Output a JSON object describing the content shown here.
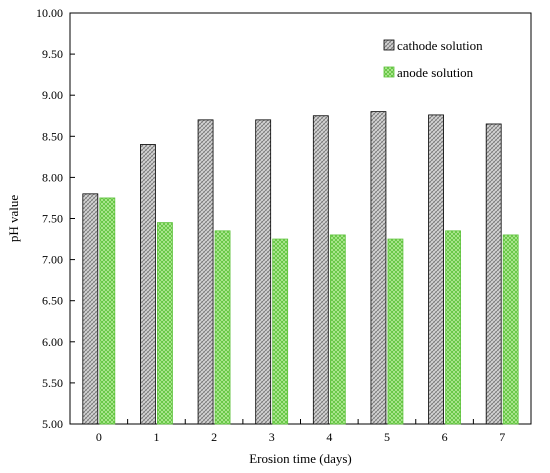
{
  "chart_data": {
    "type": "bar",
    "title": "",
    "xlabel": "Erosion time (days)",
    "ylabel": "pH value",
    "categories": [
      "0",
      "1",
      "2",
      "3",
      "4",
      "5",
      "6",
      "7"
    ],
    "ylim": [
      5.0,
      10.0
    ],
    "yticks": [
      "5.00",
      "5.50",
      "6.00",
      "6.50",
      "7.00",
      "7.50",
      "8.00",
      "8.50",
      "9.00",
      "9.50",
      "10.00"
    ],
    "grid": false,
    "legend_position": "top-right",
    "series": [
      {
        "name": "cathode solution",
        "values": [
          7.8,
          8.4,
          8.7,
          8.7,
          8.75,
          8.8,
          8.76,
          8.65
        ],
        "color": "#a0a0a0"
      },
      {
        "name": "anode solution",
        "values": [
          7.75,
          7.45,
          7.35,
          7.25,
          7.3,
          7.25,
          7.35,
          7.3
        ],
        "color": "#66cc44"
      }
    ]
  }
}
